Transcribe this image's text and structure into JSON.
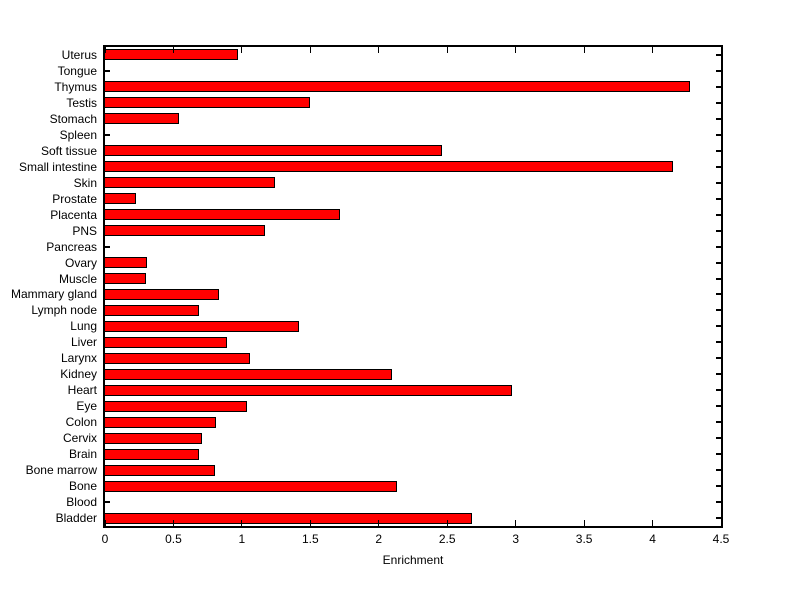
{
  "figure": {
    "background_color": "#ffffff",
    "bar_fill_color": "#ff0000",
    "bar_edge_color": "#000000",
    "axis_color": "#000000",
    "text_color": "#000000"
  },
  "chart_data": {
    "type": "bar",
    "orientation": "horizontal",
    "title": "",
    "xlabel": "Enrichment",
    "ylabel": "",
    "xlim": [
      0,
      4.5
    ],
    "xticks": [
      0,
      0.5,
      1,
      1.5,
      2,
      2.5,
      3,
      3.5,
      4,
      4.5
    ],
    "xtick_labels": [
      "0",
      "0.5",
      "1",
      "1.5",
      "2",
      "2.5",
      "3",
      "3.5",
      "4",
      "4.5"
    ],
    "grid": false,
    "legend_position": "none",
    "categories": [
      "Uterus",
      "Tongue",
      "Thymus",
      "Testis",
      "Stomach",
      "Spleen",
      "Soft tissue",
      "Small intestine",
      "Skin",
      "Prostate",
      "Placenta",
      "PNS",
      "Pancreas",
      "Ovary",
      "Muscle",
      "Mammary gland",
      "Lymph node",
      "Lung",
      "Liver",
      "Larynx",
      "Kidney",
      "Heart",
      "Eye",
      "Colon",
      "Cervix",
      "Brain",
      "Bone marrow",
      "Bone",
      "Blood",
      "Bladder"
    ],
    "values": [
      0.97,
      0,
      4.27,
      1.5,
      0.54,
      0,
      2.46,
      4.15,
      1.24,
      0.23,
      1.72,
      1.17,
      0,
      0.31,
      0.3,
      0.83,
      0.69,
      1.42,
      0.89,
      1.06,
      2.1,
      2.97,
      1.04,
      0.81,
      0.71,
      0.69,
      0.8,
      2.13,
      0,
      2.68
    ]
  }
}
